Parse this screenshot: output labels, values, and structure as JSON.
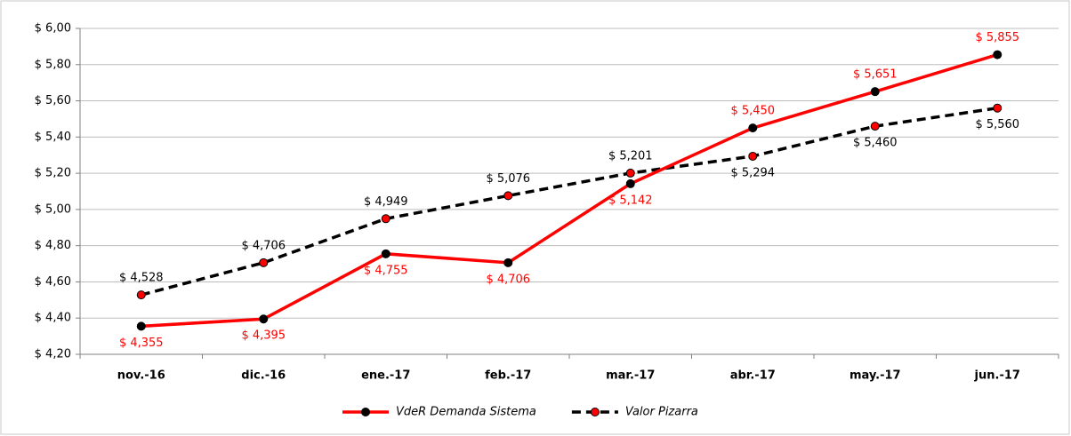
{
  "chart_data": {
    "type": "line",
    "categories": [
      "nov.-16",
      "dic.-16",
      "ene.-17",
      "feb.-17",
      "mar.-17",
      "abr.-17",
      "may.-17",
      "jun.-17"
    ],
    "series": [
      {
        "name": "VdeR Demanda Sistema",
        "color": "#ff0000",
        "marker_color": "#000000",
        "line_style": "solid",
        "values": [
          4.355,
          4.395,
          4.755,
          4.706,
          5.142,
          5.45,
          5.651,
          5.855
        ],
        "value_labels": [
          "$ 4,355",
          "$ 4,395",
          "$ 4,755",
          "$ 4,706",
          "$ 5,142",
          "$ 5,450",
          "$ 5,651",
          "$ 5,855"
        ],
        "label_color": "#ff0000"
      },
      {
        "name": "Valor Pizarra",
        "color": "#000000",
        "marker_color": "#ff0000",
        "line_style": "dashed",
        "values": [
          4.528,
          4.706,
          4.949,
          5.076,
          5.201,
          5.294,
          5.46,
          5.56
        ],
        "value_labels": [
          "$ 4,528",
          "$ 4,706",
          "$ 4,949",
          "$ 5,076",
          "$ 5,201",
          "$ 5,294",
          "$ 5,460",
          "$ 5,560"
        ],
        "label_color": "#000000"
      }
    ],
    "ylim": [
      4.2,
      6.0
    ],
    "yticks": [
      {
        "value": 4.2,
        "label": "$ 4,20"
      },
      {
        "value": 4.4,
        "label": "$ 4,40"
      },
      {
        "value": 4.6,
        "label": "$ 4,60"
      },
      {
        "value": 4.8,
        "label": "$ 4,80"
      },
      {
        "value": 5.0,
        "label": "$ 5,00"
      },
      {
        "value": 5.2,
        "label": "$ 5,20"
      },
      {
        "value": 5.4,
        "label": "$ 5,40"
      },
      {
        "value": 5.6,
        "label": "$ 5,60"
      },
      {
        "value": 5.8,
        "label": "$ 5,80"
      },
      {
        "value": 6.0,
        "label": "$ 6,00"
      }
    ],
    "grid": true,
    "legend": "bottom"
  }
}
